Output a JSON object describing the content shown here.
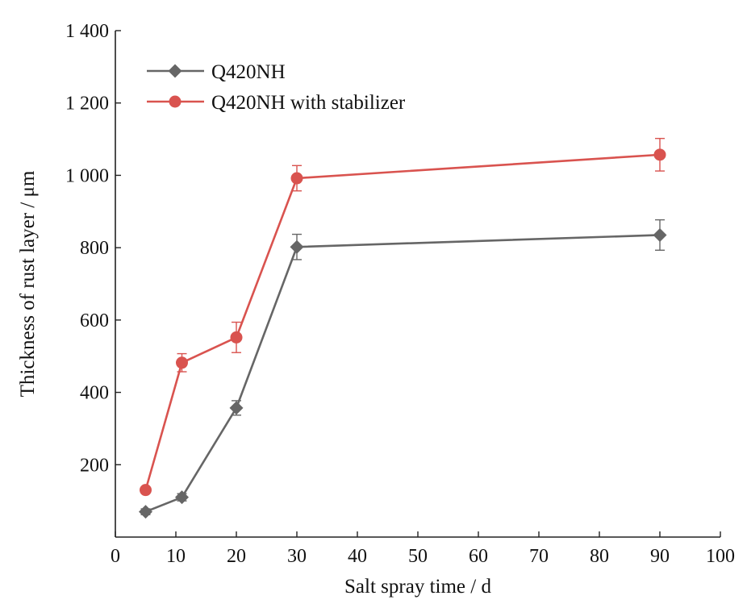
{
  "chart_data": {
    "type": "line",
    "xlabel": "Salt spray time / d",
    "ylabel": "Thickness of rust layer / μm",
    "xlim": [
      0,
      100
    ],
    "ylim": [
      0,
      1400
    ],
    "xticks": [
      0,
      10,
      20,
      30,
      40,
      50,
      60,
      70,
      80,
      90,
      100
    ],
    "yticks": [
      200,
      400,
      600,
      800,
      1000,
      1200,
      1400
    ],
    "ytick_labels": [
      "200",
      "400",
      "600",
      "800",
      "1 000",
      "1 200",
      "1 400"
    ],
    "xtick_labels": [
      "0",
      "10",
      "20",
      "30",
      "40",
      "50",
      "60",
      "70",
      "80",
      "90",
      "100"
    ],
    "grid": false,
    "legend_position": "top-left",
    "series": [
      {
        "name": "Q420NH",
        "color": "#666666",
        "marker": "diamond",
        "x": [
          5,
          11,
          20,
          30,
          90
        ],
        "y": [
          70,
          110,
          357,
          802,
          835
        ],
        "error": [
          8,
          10,
          20,
          35,
          42
        ]
      },
      {
        "name": "Q420NH with stabilizer",
        "color": "#d9534f",
        "marker": "circle",
        "x": [
          5,
          11,
          20,
          30,
          90
        ],
        "y": [
          130,
          482,
          552,
          992,
          1057
        ],
        "error": [
          0,
          25,
          42,
          35,
          45
        ]
      }
    ]
  }
}
